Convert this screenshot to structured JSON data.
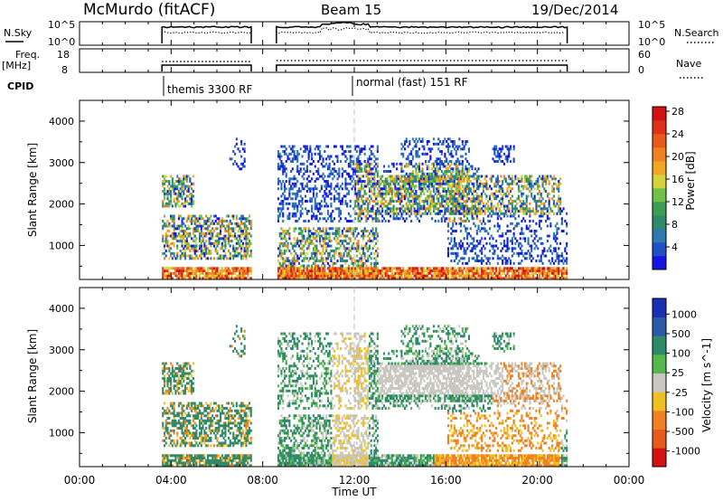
{
  "header": {
    "station": "McMurdo (fitACF)",
    "beam": "Beam 15",
    "date": "19/Dec/2014"
  },
  "top_panels": {
    "nsky_label": "N.Sky",
    "nsky_ticks": [
      "10^5",
      "10^0"
    ],
    "nsearch_label": "N.Search",
    "freq_label": "Freq.",
    "freq_unit": "[MHz]",
    "freq_ticks": [
      "18",
      "8"
    ],
    "nave_label": "Nave",
    "nave_ticks": [
      "60",
      "0"
    ],
    "nsky_right_ticks": [
      "10^5",
      "10^0"
    ],
    "cpid_label": "CPID",
    "cpid_modes": [
      "themis 3300 RF",
      "normal (fast) 151 RF"
    ]
  },
  "chart_data": [
    {
      "type": "heatmap",
      "title": "",
      "ylabel": "Slant Range [km]",
      "xlabel": "",
      "x_range_hours": [
        0,
        24
      ],
      "y_range_km": [
        180,
        4500
      ],
      "y_ticks": [
        "1000",
        "2000",
        "3000",
        "4000"
      ],
      "colorbar": {
        "label": "Power [dB]",
        "ticks": [
          "4",
          "8",
          "12",
          "16",
          "20",
          "24",
          "28"
        ],
        "colors": [
          "#1414e6",
          "#1e50c8",
          "#2e7ab0",
          "#2f8a6a",
          "#3c9e55",
          "#72c14a",
          "#d6d23a",
          "#f0a824",
          "#f08020",
          "#e85a1c",
          "#e03018",
          "#d41010"
        ]
      },
      "data_intervals_ut": [
        [
          3.6,
          7.5
        ],
        [
          8.6,
          21.3
        ]
      ],
      "scan_marker_ut": 12.0
    },
    {
      "type": "heatmap",
      "title": "",
      "ylabel": "Slant Range [km]",
      "xlabel": "Time UT",
      "x_range_hours": [
        0,
        24
      ],
      "y_range_km": [
        180,
        4500
      ],
      "y_ticks": [
        "1000",
        "2000",
        "3000",
        "4000"
      ],
      "x_ticks": [
        "00:00",
        "04:00",
        "08:00",
        "12:00",
        "16:00",
        "20:00",
        "00:00"
      ],
      "colorbar": {
        "label": "Velocity [m s^-1]",
        "ticks": [
          "1000",
          "500",
          "100",
          "25",
          "-25",
          "-100",
          "-500",
          "-1000"
        ],
        "colors": [
          "#1a2fb4",
          "#2a5aa8",
          "#2f8a6a",
          "#55b84a",
          "#c8c8c0",
          "#f0c020",
          "#f08020",
          "#e85a1c",
          "#d41010"
        ]
      },
      "data_intervals_ut": [
        [
          3.6,
          7.5
        ],
        [
          8.6,
          21.3
        ]
      ],
      "scan_marker_ut": 12.0
    }
  ]
}
